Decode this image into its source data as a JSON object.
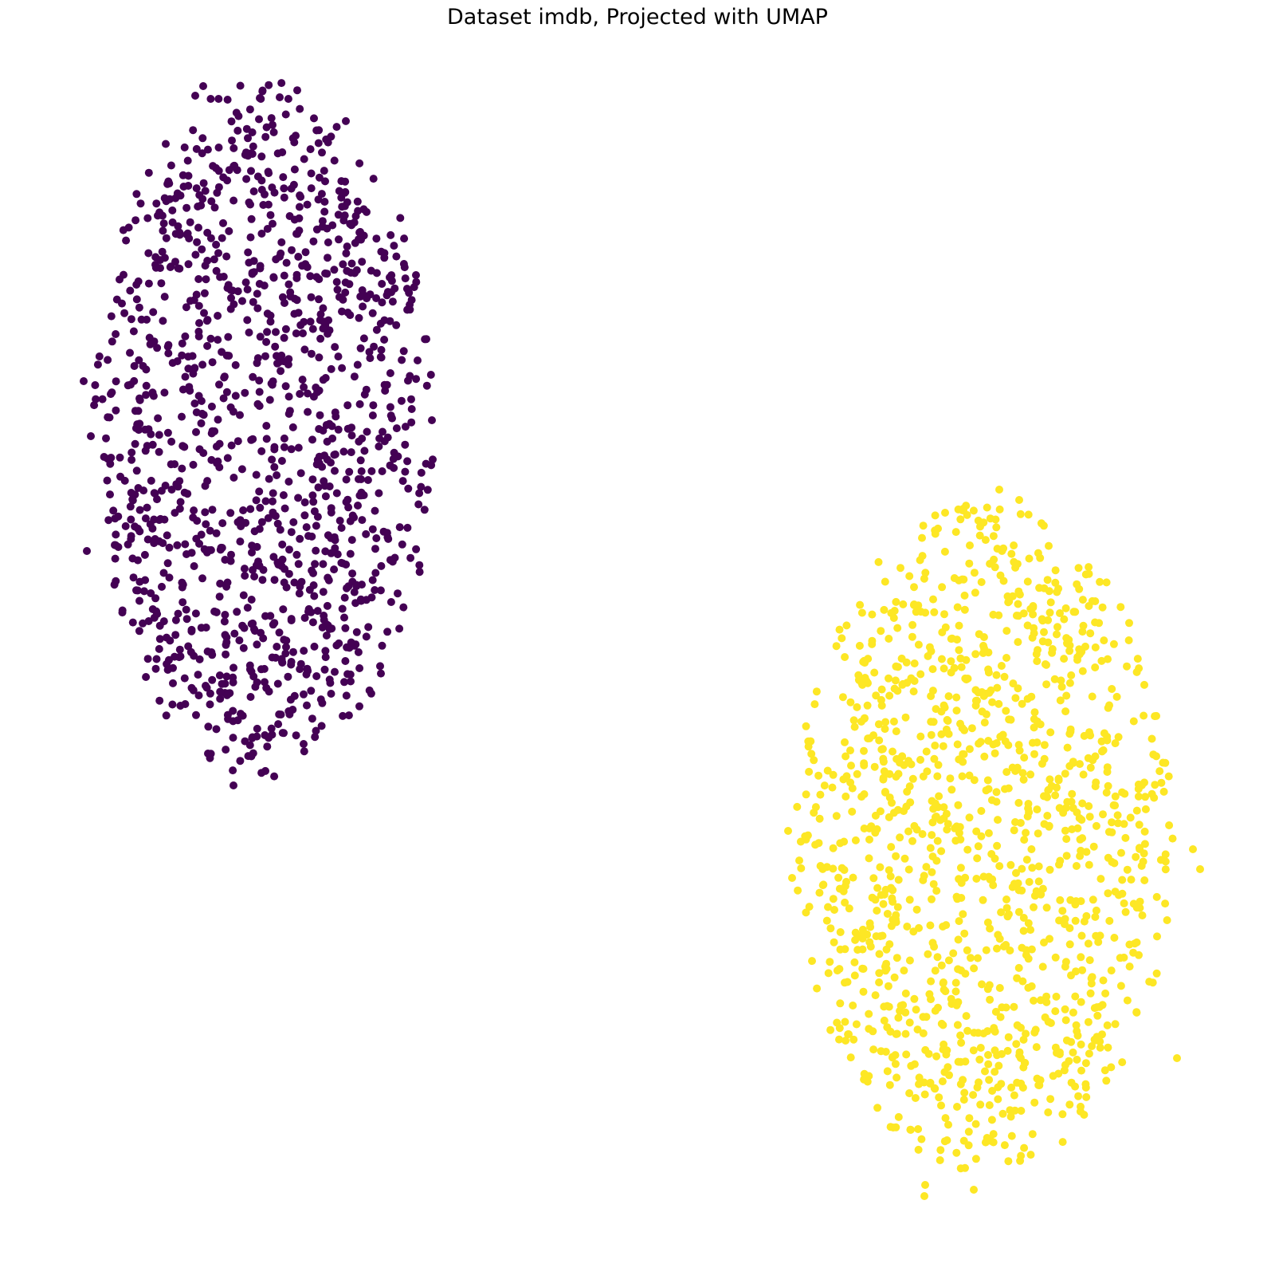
{
  "chart_data": {
    "type": "scatter",
    "title": "Dataset imdb, Projected with UMAP",
    "xlabel": "",
    "ylabel": "",
    "axes_visible": false,
    "grid": false,
    "legend": "none",
    "colormap": "viridis",
    "series": [
      {
        "color": "#440154",
        "clusters": [
          {
            "cx": 331,
            "cy": 536,
            "rx": 215,
            "ry": 440,
            "n": 1250,
            "seed": 17
          }
        ],
        "extra_points": [
          [
            255,
            108
          ],
          [
            245,
            120
          ],
          [
            351,
            122
          ],
          [
            326,
            123
          ],
          [
            293,
            985
          ],
          [
            261,
            945
          ],
          [
            105,
            478
          ],
          [
            109,
            691
          ],
          [
            542,
            527
          ],
          [
            114,
            547
          ],
          [
            524,
            452
          ],
          [
            522,
            345
          ]
        ]
      },
      {
        "color": "#fde725",
        "clusters": [
          {
            "cx": 1235,
            "cy": 1050,
            "rx": 238,
            "ry": 420,
            "n": 1250,
            "seed": 91
          }
        ],
        "extra_points": [
          [
            1279,
            627
          ],
          [
            1254,
            614
          ],
          [
            1209,
            640
          ],
          [
            1186,
            643
          ],
          [
            1160,
            1500
          ],
          [
            1161,
            1486
          ],
          [
            1222,
            1492
          ],
          [
            989,
            1042
          ],
          [
            994,
            1101
          ],
          [
            1506,
            1090
          ],
          [
            1497,
            1065
          ],
          [
            1477,
            1327
          ]
        ]
      }
    ]
  }
}
